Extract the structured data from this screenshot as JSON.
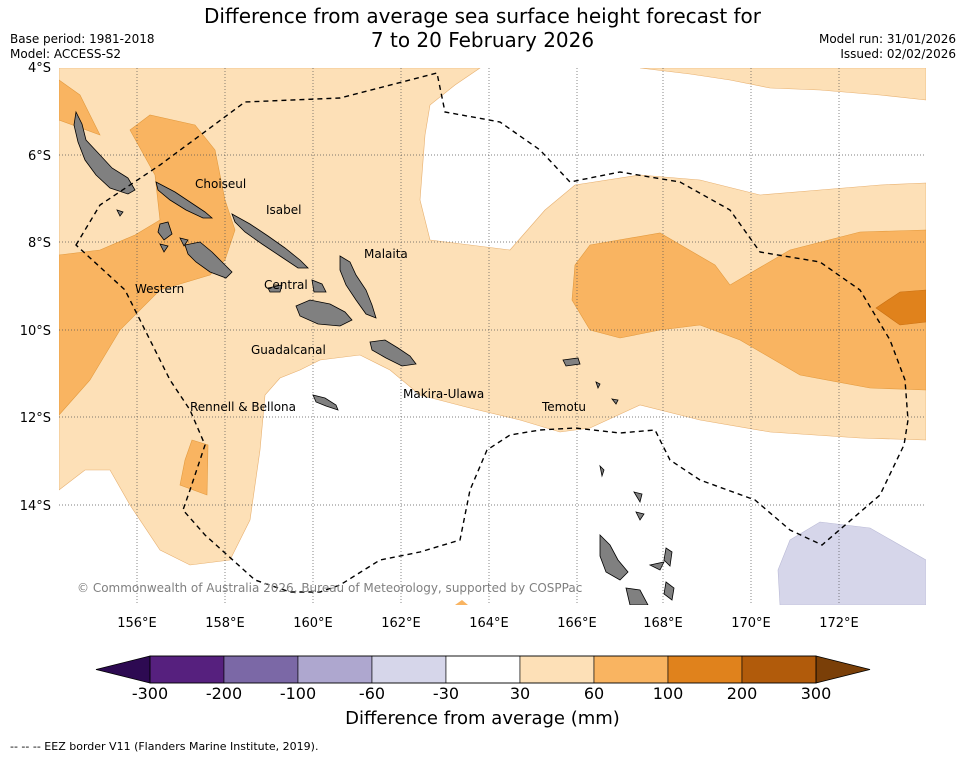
{
  "header": {
    "title_line1": "Difference from average sea surface height forecast for",
    "title_line2": "7 to 20 February 2026",
    "base_period": "Base period: 1981-2018",
    "model": "Model: ACCESS-S2",
    "model_run": "Model run: 31/01/2026",
    "issued": "Issued: 02/02/2026"
  },
  "map": {
    "lat_labels": [
      "4°S",
      "6°S",
      "8°S",
      "10°S",
      "12°S",
      "14°S"
    ],
    "lon_labels": [
      "156°E",
      "158°E",
      "160°E",
      "162°E",
      "164°E",
      "166°E",
      "168°E",
      "170°E",
      "172°E"
    ],
    "province_labels": [
      "Choiseul",
      "Isabel",
      "Malaita",
      "Western",
      "Central",
      "Guadalcanal",
      "Makira-Ulawa",
      "Rennell & Bellona",
      "Temotu"
    ],
    "copyright": "© Commonwealth of Australia 2026, Bureau of Meteorology, supported by COSPPac"
  },
  "colorbar": {
    "title": "Difference from average (mm)",
    "tick_labels": [
      "-300",
      "-200",
      "-100",
      "-60",
      "-30",
      "30",
      "60",
      "100",
      "200",
      "300"
    ],
    "colors": {
      "below_min": "#2d0a52",
      "bins": [
        "#56207e",
        "#7b68a6",
        "#aea7cf",
        "#d6d6ea",
        "#ffffff",
        "#fde0b7",
        "#f9b461",
        "#e0821c",
        "#b15b0b"
      ],
      "above_max": "#7a3f08"
    }
  },
  "footnote": "--  --  -- EEZ border V11 (Flanders Marine Institute, 2019)."
}
